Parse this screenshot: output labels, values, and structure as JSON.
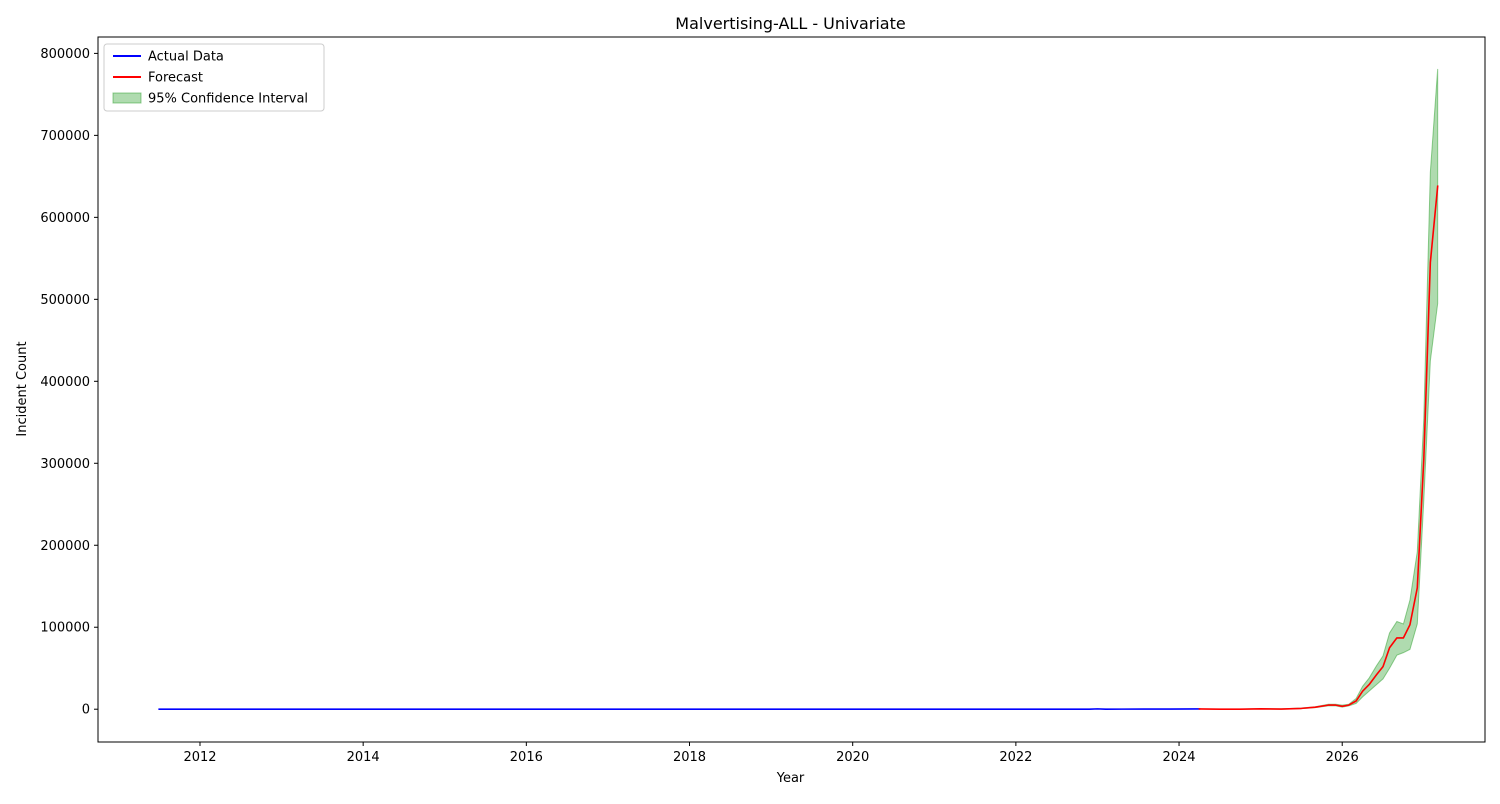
{
  "chart_data": {
    "type": "line",
    "title": "Malvertising-ALL - Univariate",
    "xlabel": "Year",
    "ylabel": "Incident Count",
    "xlim": [
      2010.75,
      2027.75
    ],
    "ylim": [
      -40000,
      820000
    ],
    "x_ticks": [
      2012,
      2014,
      2016,
      2018,
      2020,
      2022,
      2024,
      2026
    ],
    "x_tick_labels": [
      "2012",
      "2014",
      "2016",
      "2018",
      "2020",
      "2022",
      "2024",
      "2026"
    ],
    "y_ticks": [
      0,
      100000,
      200000,
      300000,
      400000,
      500000,
      600000,
      700000,
      800000
    ],
    "y_tick_labels": [
      "0",
      "100000",
      "200000",
      "300000",
      "400000",
      "500000",
      "600000",
      "700000",
      "800000"
    ],
    "grid": false,
    "legend_position": "top-left",
    "legend": [
      {
        "label": "Actual Data",
        "kind": "line",
        "color": "#0000ff"
      },
      {
        "label": "Forecast",
        "kind": "line",
        "color": "#ff0000"
      },
      {
        "label": "95% Confidence Interval",
        "kind": "band",
        "color": "#2ca02c"
      }
    ],
    "series": [
      {
        "name": "Actual Data",
        "color": "#0000ff",
        "x": [
          2011.5,
          2012.5,
          2013.5,
          2014.5,
          2015.5,
          2016.5,
          2017.5,
          2018.5,
          2019.5,
          2020.5,
          2021.5,
          2022.5,
          2022.9,
          2023.0,
          2023.1,
          2023.3,
          2023.6,
          2023.9,
          2024.2,
          2024.25
        ],
        "y": [
          0,
          0,
          0,
          0,
          0,
          0,
          0,
          0,
          0,
          0,
          0,
          0,
          0,
          400,
          0,
          100,
          150,
          200,
          300,
          300
        ]
      },
      {
        "name": "Forecast",
        "color": "#ff0000",
        "x": [
          2024.25,
          2024.5,
          2024.75,
          2025.0,
          2025.25,
          2025.5,
          2025.67,
          2025.83,
          2025.92,
          2026.0,
          2026.08,
          2026.17,
          2026.25,
          2026.33,
          2026.42,
          2026.5,
          2026.58,
          2026.67,
          2026.75,
          2026.83,
          2026.92,
          2027.0,
          2027.08,
          2027.17
        ],
        "y": [
          300,
          0,
          0,
          500,
          200,
          1000,
          2500,
          5000,
          5000,
          3500,
          5000,
          10000,
          22000,
          30000,
          42000,
          52000,
          75000,
          87000,
          87000,
          103000,
          148000,
          305000,
          545000,
          638000
        ]
      }
    ],
    "confidence_interval": {
      "name": "95% Confidence Interval",
      "color": "#2ca02c",
      "x": [
        2024.25,
        2024.5,
        2024.75,
        2025.0,
        2025.25,
        2025.5,
        2025.67,
        2025.83,
        2025.92,
        2026.0,
        2026.08,
        2026.17,
        2026.25,
        2026.33,
        2026.42,
        2026.5,
        2026.58,
        2026.67,
        2026.75,
        2026.83,
        2026.92,
        2027.0,
        2027.08,
        2027.17
      ],
      "lower": [
        300,
        0,
        0,
        300,
        0,
        700,
        2000,
        4000,
        4000,
        2500,
        4000,
        7000,
        15000,
        22000,
        30000,
        37000,
        50000,
        66000,
        69000,
        73000,
        104000,
        255000,
        425000,
        495000
      ],
      "upper": [
        300,
        100,
        100,
        700,
        400,
        1500,
        3000,
        6000,
        6000,
        5000,
        6000,
        13000,
        28000,
        38000,
        53000,
        65000,
        93000,
        107000,
        104000,
        133000,
        192000,
        355000,
        655000,
        781000
      ]
    }
  }
}
